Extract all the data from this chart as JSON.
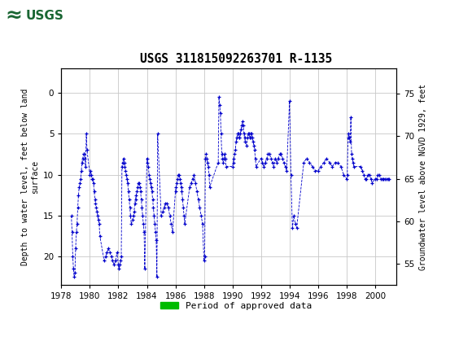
{
  "title": "USGS 311815092263701 R-1135",
  "ylabel_left": "Depth to water level, feet below land\nsurface",
  "ylabel_right": "Groundwater level above NGVD 1929, feet",
  "xlim": [
    1978,
    2001.5
  ],
  "ylim_left": [
    23.5,
    -3.0
  ],
  "ylim_right": [
    52.5,
    78.0
  ],
  "yticks_left": [
    0,
    5,
    10,
    15,
    20
  ],
  "yticks_right": [
    55,
    60,
    65,
    70,
    75
  ],
  "xticks": [
    1978,
    1980,
    1982,
    1984,
    1986,
    1988,
    1990,
    1992,
    1994,
    1996,
    1998,
    2000
  ],
  "grid_color": "#c8c8c8",
  "line_color": "#0000cc",
  "marker": "+",
  "linestyle": "--",
  "header_bg_color": "#1a6633",
  "header_logo_bg": "#ffffff",
  "approved_bar_color": "#00bb00",
  "background_color": "#ffffff",
  "plot_bg_color": "#ffffff",
  "data_x": [
    1978.7,
    1978.75,
    1978.8,
    1978.85,
    1978.9,
    1978.95,
    1979.0,
    1979.05,
    1979.1,
    1979.15,
    1979.2,
    1979.25,
    1979.3,
    1979.35,
    1979.4,
    1979.45,
    1979.5,
    1979.55,
    1979.6,
    1979.65,
    1979.7,
    1979.75,
    1979.8,
    1980.0,
    1980.05,
    1980.1,
    1980.15,
    1980.2,
    1980.25,
    1980.3,
    1980.35,
    1980.4,
    1980.45,
    1980.5,
    1980.55,
    1980.6,
    1980.65,
    1980.7,
    1981.0,
    1981.1,
    1981.2,
    1981.3,
    1981.4,
    1981.5,
    1981.6,
    1981.7,
    1981.8,
    1981.9,
    1982.0,
    1982.05,
    1982.1,
    1982.15,
    1982.2,
    1982.25,
    1982.3,
    1982.35,
    1982.4,
    1982.45,
    1982.5,
    1982.55,
    1982.6,
    1982.65,
    1982.7,
    1982.75,
    1982.8,
    1982.85,
    1982.9,
    1983.0,
    1983.05,
    1983.1,
    1983.15,
    1983.2,
    1983.25,
    1983.3,
    1983.35,
    1983.4,
    1983.45,
    1983.5,
    1983.55,
    1983.6,
    1983.65,
    1983.7,
    1983.75,
    1983.8,
    1983.85,
    1984.0,
    1984.05,
    1984.1,
    1984.15,
    1984.2,
    1984.25,
    1984.3,
    1984.35,
    1984.4,
    1984.45,
    1984.5,
    1984.55,
    1984.6,
    1984.65,
    1984.7,
    1984.75,
    1985.0,
    1985.1,
    1985.2,
    1985.3,
    1985.4,
    1985.5,
    1985.6,
    1985.7,
    1985.8,
    1986.0,
    1986.05,
    1986.1,
    1986.15,
    1986.2,
    1986.25,
    1986.3,
    1986.35,
    1986.4,
    1986.45,
    1986.5,
    1986.55,
    1986.6,
    1986.65,
    1987.0,
    1987.1,
    1987.2,
    1987.3,
    1987.4,
    1987.5,
    1987.6,
    1987.7,
    1987.8,
    1987.9,
    1988.0,
    1988.05,
    1988.1,
    1988.15,
    1988.2,
    1988.25,
    1988.3,
    1988.35,
    1988.4,
    1989.0,
    1989.05,
    1989.1,
    1989.15,
    1989.2,
    1989.25,
    1989.3,
    1989.35,
    1989.4,
    1989.45,
    1989.5,
    1989.55,
    1990.0,
    1990.05,
    1990.1,
    1990.15,
    1990.2,
    1990.25,
    1990.3,
    1990.35,
    1990.4,
    1990.45,
    1990.5,
    1990.55,
    1990.6,
    1990.65,
    1990.7,
    1990.75,
    1990.8,
    1990.85,
    1990.9,
    1991.0,
    1991.05,
    1991.1,
    1991.15,
    1991.2,
    1991.25,
    1991.3,
    1991.35,
    1991.4,
    1991.45,
    1991.5,
    1991.55,
    1991.6,
    1991.65,
    1992.0,
    1992.1,
    1992.2,
    1992.3,
    1992.4,
    1992.5,
    1992.6,
    1992.7,
    1992.8,
    1992.9,
    1993.0,
    1993.1,
    1993.2,
    1993.3,
    1993.4,
    1993.5,
    1993.6,
    1993.7,
    1993.8,
    1994.0,
    1994.1,
    1994.2,
    1994.3,
    1994.4,
    1994.5,
    1995.0,
    1995.2,
    1995.4,
    1995.6,
    1995.8,
    1996.0,
    1996.2,
    1996.4,
    1996.6,
    1996.8,
    1997.0,
    1997.2,
    1997.4,
    1997.6,
    1997.8,
    1998.0,
    1998.05,
    1998.1,
    1998.15,
    1998.2,
    1998.25,
    1998.3,
    1998.35,
    1998.4,
    1998.45,
    1998.5,
    1999.0,
    1999.1,
    1999.2,
    1999.3,
    1999.4,
    1999.5,
    1999.6,
    1999.7,
    1999.8,
    2000.0,
    2000.1,
    2000.2,
    2000.3,
    2000.4,
    2000.5,
    2000.6,
    2000.7,
    2000.8,
    2000.9,
    2001.0
  ],
  "data_y": [
    15.0,
    17.0,
    20.0,
    21.5,
    22.5,
    22.0,
    19.0,
    17.0,
    16.0,
    14.0,
    12.5,
    11.5,
    11.0,
    10.5,
    9.5,
    8.5,
    8.0,
    7.5,
    7.5,
    8.0,
    9.0,
    5.0,
    7.0,
    10.0,
    9.5,
    10.0,
    10.5,
    10.5,
    11.0,
    12.0,
    13.0,
    13.5,
    14.0,
    14.5,
    15.0,
    15.5,
    16.0,
    17.5,
    20.5,
    20.0,
    19.5,
    19.0,
    19.5,
    20.0,
    20.5,
    21.0,
    20.5,
    19.5,
    21.0,
    21.5,
    21.0,
    20.5,
    20.0,
    9.0,
    8.5,
    8.0,
    8.5,
    9.0,
    9.5,
    10.0,
    10.5,
    11.0,
    12.0,
    13.0,
    14.0,
    15.0,
    16.0,
    15.5,
    15.0,
    14.5,
    13.5,
    13.0,
    12.5,
    12.0,
    11.5,
    11.0,
    11.0,
    11.5,
    12.0,
    13.0,
    14.0,
    15.0,
    16.0,
    17.0,
    21.5,
    8.0,
    8.5,
    9.0,
    10.0,
    10.5,
    11.0,
    11.5,
    12.0,
    13.0,
    14.0,
    15.0,
    16.0,
    17.0,
    18.0,
    22.5,
    5.0,
    15.0,
    14.5,
    14.0,
    13.5,
    13.5,
    14.0,
    15.0,
    16.0,
    17.0,
    12.0,
    11.5,
    11.0,
    10.5,
    10.0,
    10.0,
    10.5,
    11.0,
    11.5,
    12.0,
    13.0,
    14.0,
    15.0,
    16.0,
    11.5,
    11.0,
    10.5,
    10.0,
    11.0,
    12.0,
    13.0,
    14.0,
    15.0,
    16.0,
    20.5,
    20.0,
    8.0,
    7.5,
    8.0,
    8.5,
    9.0,
    10.0,
    11.5,
    8.5,
    0.5,
    1.5,
    2.5,
    5.0,
    7.5,
    8.0,
    8.5,
    8.0,
    7.5,
    8.0,
    9.0,
    9.0,
    8.5,
    8.0,
    7.5,
    7.0,
    6.0,
    5.5,
    5.0,
    5.0,
    5.5,
    5.5,
    5.0,
    4.5,
    4.0,
    3.5,
    4.0,
    5.0,
    5.5,
    6.0,
    6.5,
    5.5,
    5.0,
    5.0,
    5.5,
    5.5,
    5.0,
    5.0,
    5.5,
    6.0,
    6.5,
    7.0,
    8.0,
    9.0,
    8.0,
    8.5,
    9.0,
    8.5,
    8.0,
    7.5,
    7.5,
    8.0,
    8.5,
    9.0,
    8.0,
    8.5,
    8.0,
    7.5,
    7.5,
    8.0,
    8.5,
    9.0,
    9.5,
    1.0,
    10.0,
    16.5,
    15.0,
    16.0,
    16.5,
    8.5,
    8.0,
    8.5,
    9.0,
    9.5,
    9.5,
    9.0,
    8.5,
    8.0,
    8.5,
    9.0,
    8.5,
    8.5,
    9.0,
    10.0,
    10.5,
    10.0,
    5.5,
    5.0,
    5.5,
    6.0,
    3.0,
    7.5,
    8.0,
    8.5,
    9.0,
    9.0,
    9.5,
    10.0,
    10.5,
    10.5,
    10.0,
    10.0,
    10.5,
    11.0,
    10.5,
    10.5,
    10.0,
    10.0,
    10.5,
    10.5,
    10.5,
    10.5,
    10.5,
    10.5,
    10.5
  ]
}
